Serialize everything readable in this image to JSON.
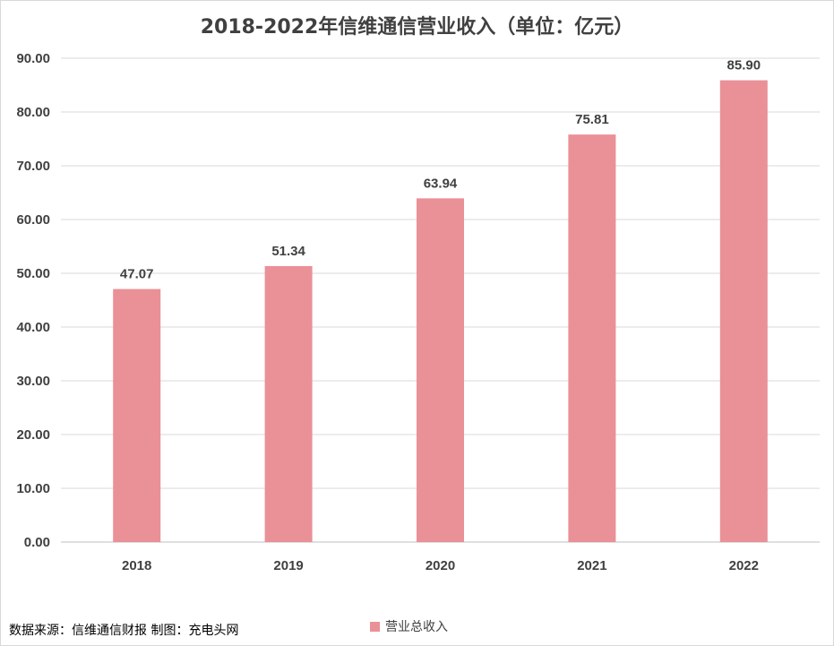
{
  "chart_data": {
    "type": "bar",
    "title": "2018-2022年信维通信营业收入（单位：亿元）",
    "categories": [
      "2018",
      "2019",
      "2020",
      "2021",
      "2022"
    ],
    "series": [
      {
        "name": "营业总收入",
        "values": [
          47.07,
          51.34,
          63.94,
          75.81,
          85.9
        ],
        "color": "#ea9097"
      }
    ],
    "data_labels": [
      "47.07",
      "51.34",
      "63.94",
      "75.81",
      "85.90"
    ],
    "ylim": [
      0,
      90
    ],
    "y_ticks": [
      "0.00",
      "10.00",
      "20.00",
      "30.00",
      "40.00",
      "50.00",
      "60.00",
      "70.00",
      "80.00",
      "90.00"
    ],
    "xlabel": "",
    "ylabel": "",
    "grid": true,
    "legend_position": "bottom"
  },
  "footer": {
    "source": "数据来源：信维通信财报  制图：充电头网"
  },
  "colors": {
    "bar": "#ea9097",
    "grid": "#d9d9d9",
    "text": "#404040"
  }
}
